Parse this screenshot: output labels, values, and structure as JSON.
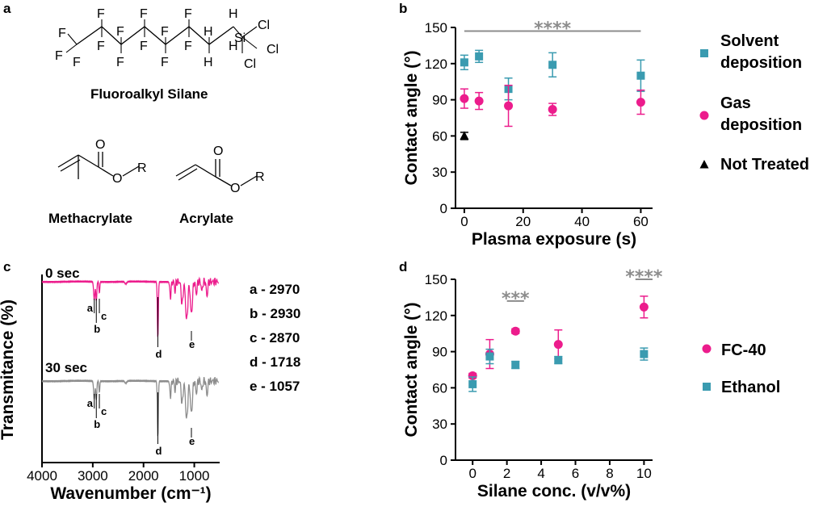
{
  "panels": {
    "a": "a",
    "b": "b",
    "c": "c",
    "d": "d"
  },
  "colors": {
    "pink": "#ec1c8c",
    "teal": "#3a9bb0",
    "gray": "#8c8c8c",
    "black": "#000000"
  },
  "chemistry": {
    "silane_name": "Fluoroalkyl Silane",
    "methacrylate": "Methacrylate",
    "acrylate": "Acrylate",
    "atoms": {
      "F": "F",
      "H": "H",
      "Si": "Si",
      "Cl": "Cl",
      "O": "O",
      "R": "R"
    }
  },
  "chart_data": [
    {
      "panel": "b",
      "type": "scatter",
      "xlabel": "Plasma exposure (s)",
      "ylabel": "Contact angle (°)",
      "xlim": [
        -3,
        64
      ],
      "ylim": [
        0,
        150
      ],
      "xticks": [
        "0",
        "20",
        "40",
        "60"
      ],
      "xtick_values": [
        0,
        20,
        40,
        60
      ],
      "yticks": [
        "0",
        "30",
        "60",
        "90",
        "120",
        "150"
      ],
      "ytick_values": [
        0,
        30,
        60,
        90,
        120,
        150
      ],
      "legend": "right",
      "series": [
        {
          "name": "Solvent deposition",
          "marker": "square",
          "color": "#3a9bb0",
          "x": [
            0,
            5,
            15,
            30,
            60
          ],
          "y": [
            121,
            126,
            99,
            119,
            110
          ],
          "err": [
            6,
            5,
            9,
            10,
            13
          ]
        },
        {
          "name": "Gas deposition",
          "marker": "circle",
          "color": "#ec1c8c",
          "x": [
            0,
            5,
            15,
            30,
            60
          ],
          "y": [
            91,
            89,
            85,
            82,
            88
          ],
          "err": [
            8,
            7,
            17,
            5,
            10
          ]
        },
        {
          "name": "Not Treated",
          "marker": "triangle",
          "color": "#000000",
          "x": [
            0
          ],
          "y": [
            60
          ],
          "err": [
            3
          ]
        }
      ],
      "annotations": [
        {
          "text": "****",
          "x1": 0,
          "x2": 60,
          "y": 147
        }
      ]
    },
    {
      "panel": "c",
      "type": "line",
      "xlabel": "Wavenumber (cm⁻¹)",
      "ylabel": "Transmitance (%)",
      "xlim": [
        4000,
        500
      ],
      "xticks": [
        "4000",
        "3000",
        "2000",
        "1000"
      ],
      "xtick_values": [
        4000,
        3000,
        2000,
        1000
      ],
      "series": [
        {
          "name": "0 sec",
          "color": "#ec1c8c"
        },
        {
          "name": "30 sec",
          "color": "#8c8c8c"
        }
      ],
      "peaks": [
        {
          "label": "a",
          "wavenumber": 2970
        },
        {
          "label": "b",
          "wavenumber": 2930
        },
        {
          "label": "c",
          "wavenumber": 2870
        },
        {
          "label": "d",
          "wavenumber": 1718
        },
        {
          "label": "e",
          "wavenumber": 1057
        }
      ],
      "peak_list": [
        "a - 2970",
        "b - 2930",
        "c - 2870",
        "d - 1718",
        "e - 1057"
      ]
    },
    {
      "panel": "d",
      "type": "scatter",
      "xlabel": "Silane conc. (v/v%)",
      "ylabel": "Contact angle (°)",
      "xlim": [
        -1,
        10.5
      ],
      "ylim": [
        0,
        150
      ],
      "xticks": [
        "0",
        "2",
        "4",
        "6",
        "8",
        "10"
      ],
      "xtick_values": [
        0,
        2,
        4,
        6,
        8,
        10
      ],
      "yticks": [
        "0",
        "30",
        "60",
        "90",
        "120",
        "150"
      ],
      "ytick_values": [
        0,
        30,
        60,
        90,
        120,
        150
      ],
      "legend": "right",
      "series": [
        {
          "name": "FC-40",
          "marker": "circle",
          "color": "#ec1c8c",
          "x": [
            0,
            1,
            2.5,
            5,
            10
          ],
          "y": [
            70,
            88,
            107,
            96,
            127
          ],
          "err": [
            2,
            12,
            2,
            12,
            9
          ]
        },
        {
          "name": "Ethanol",
          "marker": "square",
          "color": "#3a9bb0",
          "x": [
            0,
            1,
            2.5,
            5,
            10
          ],
          "y": [
            63,
            86,
            79,
            83,
            88
          ],
          "err": [
            6,
            6,
            3,
            3,
            5
          ]
        }
      ],
      "annotations": [
        {
          "text": "***",
          "x1": 2,
          "x2": 3,
          "y": 132
        },
        {
          "text": "****",
          "x1": 9.5,
          "x2": 10.5,
          "y": 150
        }
      ]
    }
  ]
}
